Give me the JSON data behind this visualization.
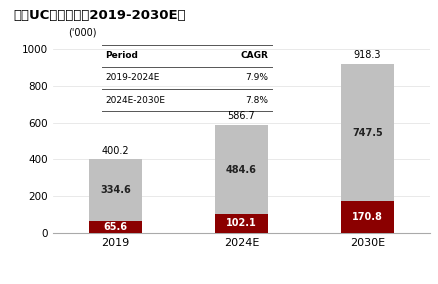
{
  "title": "中国UC患者人数（2019-2030E）",
  "categories": [
    "2019",
    "2024E",
    "2030E"
  ],
  "mild_uc": [
    65.6,
    102.1,
    170.8
  ],
  "moderate_severe_uc": [
    334.6,
    484.6,
    747.5
  ],
  "totals": [
    400.2,
    586.7,
    918.3
  ],
  "mild_color": "#8B0000",
  "moderate_color": "#C0C0C0",
  "ylim": [
    0,
    1050
  ],
  "yticks": [
    0,
    200,
    400,
    600,
    800,
    1000
  ],
  "ylabel_note": "('000)",
  "table_data": [
    [
      "Period",
      "CAGR"
    ],
    [
      "2019-2024E",
      "7.9%"
    ],
    [
      "2024E-2030E",
      "7.8%"
    ]
  ],
  "background_color": "#ffffff",
  "title_fontsize": 9.5,
  "bar_width": 0.42
}
